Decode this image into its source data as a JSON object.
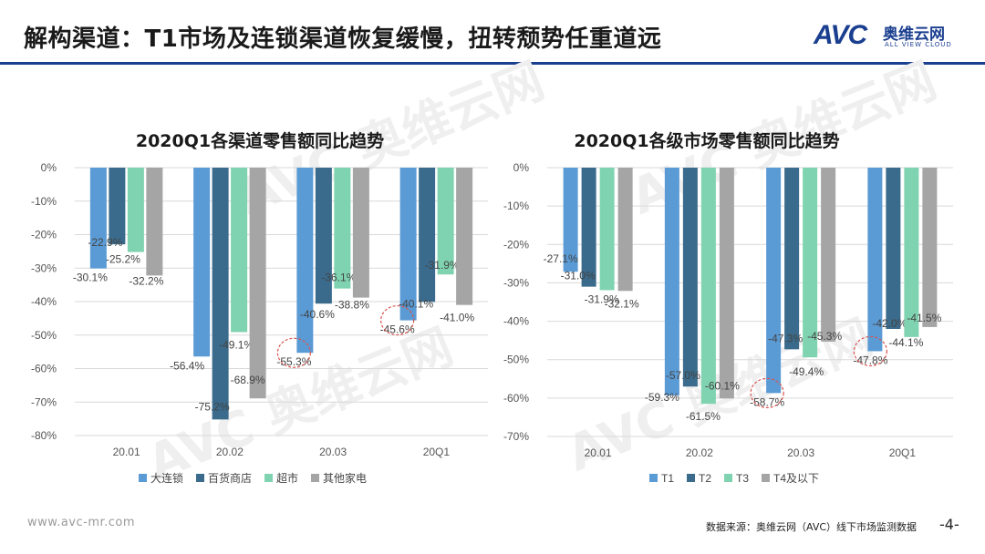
{
  "header": {
    "title": "解构渠道：T1市场及连锁渠道恢复缓慢，扭转颓势任重道远",
    "logo_text": "AVC",
    "logo_cn": "奥维云网",
    "logo_en": "ALL VIEW CLOUD"
  },
  "watermark": {
    "cn": "奥维云网",
    "en": "AVC"
  },
  "colors": {
    "s1": "#5b9bd5",
    "s2": "#3a6b8c",
    "s3": "#7fd3b0",
    "s4": "#a5a5a5",
    "brand": "#1b3f8f"
  },
  "chart_data": [
    {
      "type": "bar",
      "title": "2020Q1各渠道零售额同比趋势",
      "categories": [
        "20.01",
        "20.02",
        "20.03",
        "20Q1"
      ],
      "ylim": [
        -80,
        0
      ],
      "yticks": [
        "0%",
        "-10%",
        "-20%",
        "-30%",
        "-40%",
        "-50%",
        "-60%",
        "-70%",
        "-80%"
      ],
      "series": [
        {
          "name": "大连锁",
          "values": [
            -30.1,
            -56.4,
            -55.3,
            -45.6
          ],
          "labels": [
            "-30.1%",
            "-56.4%",
            "-55.3%",
            "-45.6%"
          ]
        },
        {
          "name": "百货商店",
          "values": [
            -22.9,
            -75.2,
            -40.6,
            -40.1
          ],
          "labels": [
            "-22.9%",
            "-75.2%",
            "-40.6%",
            "-40.1%"
          ]
        },
        {
          "name": "超市",
          "values": [
            -25.2,
            -49.1,
            -36.1,
            -31.9
          ],
          "labels": [
            "-25.2%",
            "-49.1%",
            "-36.1%",
            "-31.9%"
          ]
        },
        {
          "name": "其他家电",
          "values": [
            -32.2,
            -68.9,
            -38.8,
            -41.0
          ],
          "labels": [
            "-32.2%",
            "-68.9%",
            "-38.8%",
            "-41.0%"
          ]
        }
      ],
      "highlighted": [
        "-55.3%",
        "-45.6%"
      ]
    },
    {
      "type": "bar",
      "title": "2020Q1各级市场零售额同比趋势",
      "categories": [
        "20.01",
        "20.02",
        "20.03",
        "20Q1"
      ],
      "ylim": [
        -70,
        0
      ],
      "yticks": [
        "0%",
        "-10%",
        "-20%",
        "-30%",
        "-40%",
        "-50%",
        "-60%",
        "-70%"
      ],
      "series": [
        {
          "name": "T1",
          "values": [
            -27.1,
            -59.3,
            -58.7,
            -47.8
          ],
          "labels": [
            "-27.1%",
            "-59.3%",
            "-58.7%",
            "-47.8%"
          ]
        },
        {
          "name": "T2",
          "values": [
            -31.0,
            -57.0,
            -47.3,
            -42.0
          ],
          "labels": [
            "-31.0%",
            "-57.0%",
            "-47.3%",
            "-42.0%"
          ]
        },
        {
          "name": "T3",
          "values": [
            -31.9,
            -61.5,
            -49.4,
            -44.1
          ],
          "labels": [
            "-31.9%",
            "-61.5%",
            "-49.4%",
            "-44.1%"
          ]
        },
        {
          "name": "T4及以下",
          "values": [
            -32.1,
            -60.1,
            -45.3,
            -41.5
          ],
          "labels": [
            "-32.1%",
            "-60.1%",
            "-45.3%",
            "-41.5%"
          ]
        }
      ],
      "highlighted": [
        "-58.7%",
        "-47.8%"
      ]
    }
  ],
  "footer": {
    "website": "www.avc-mr.com",
    "source": "数据来源：奥维云网（AVC）线下市场监测数据",
    "page": "-4-"
  }
}
